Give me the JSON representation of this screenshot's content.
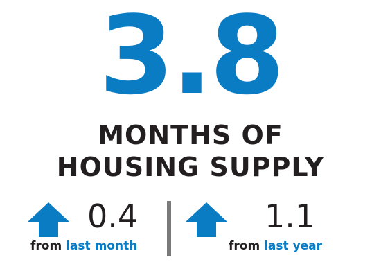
{
  "headline_value": "3.8",
  "headline_lines": [
    "MONTHS OF",
    "HOUSING SUPPLY"
  ],
  "stats": [
    {
      "direction": "up",
      "icon": "arrow-up-icon",
      "value": "0.4",
      "caption_prefix": "from",
      "caption_highlight": "last month"
    },
    {
      "direction": "up",
      "icon": "arrow-up-icon",
      "value": "1.1",
      "caption_prefix": "from",
      "caption_highlight": "last year"
    }
  ],
  "colors": {
    "accent": "#0a7cc4",
    "text": "#231f20",
    "divider": "#7a7a7a"
  }
}
